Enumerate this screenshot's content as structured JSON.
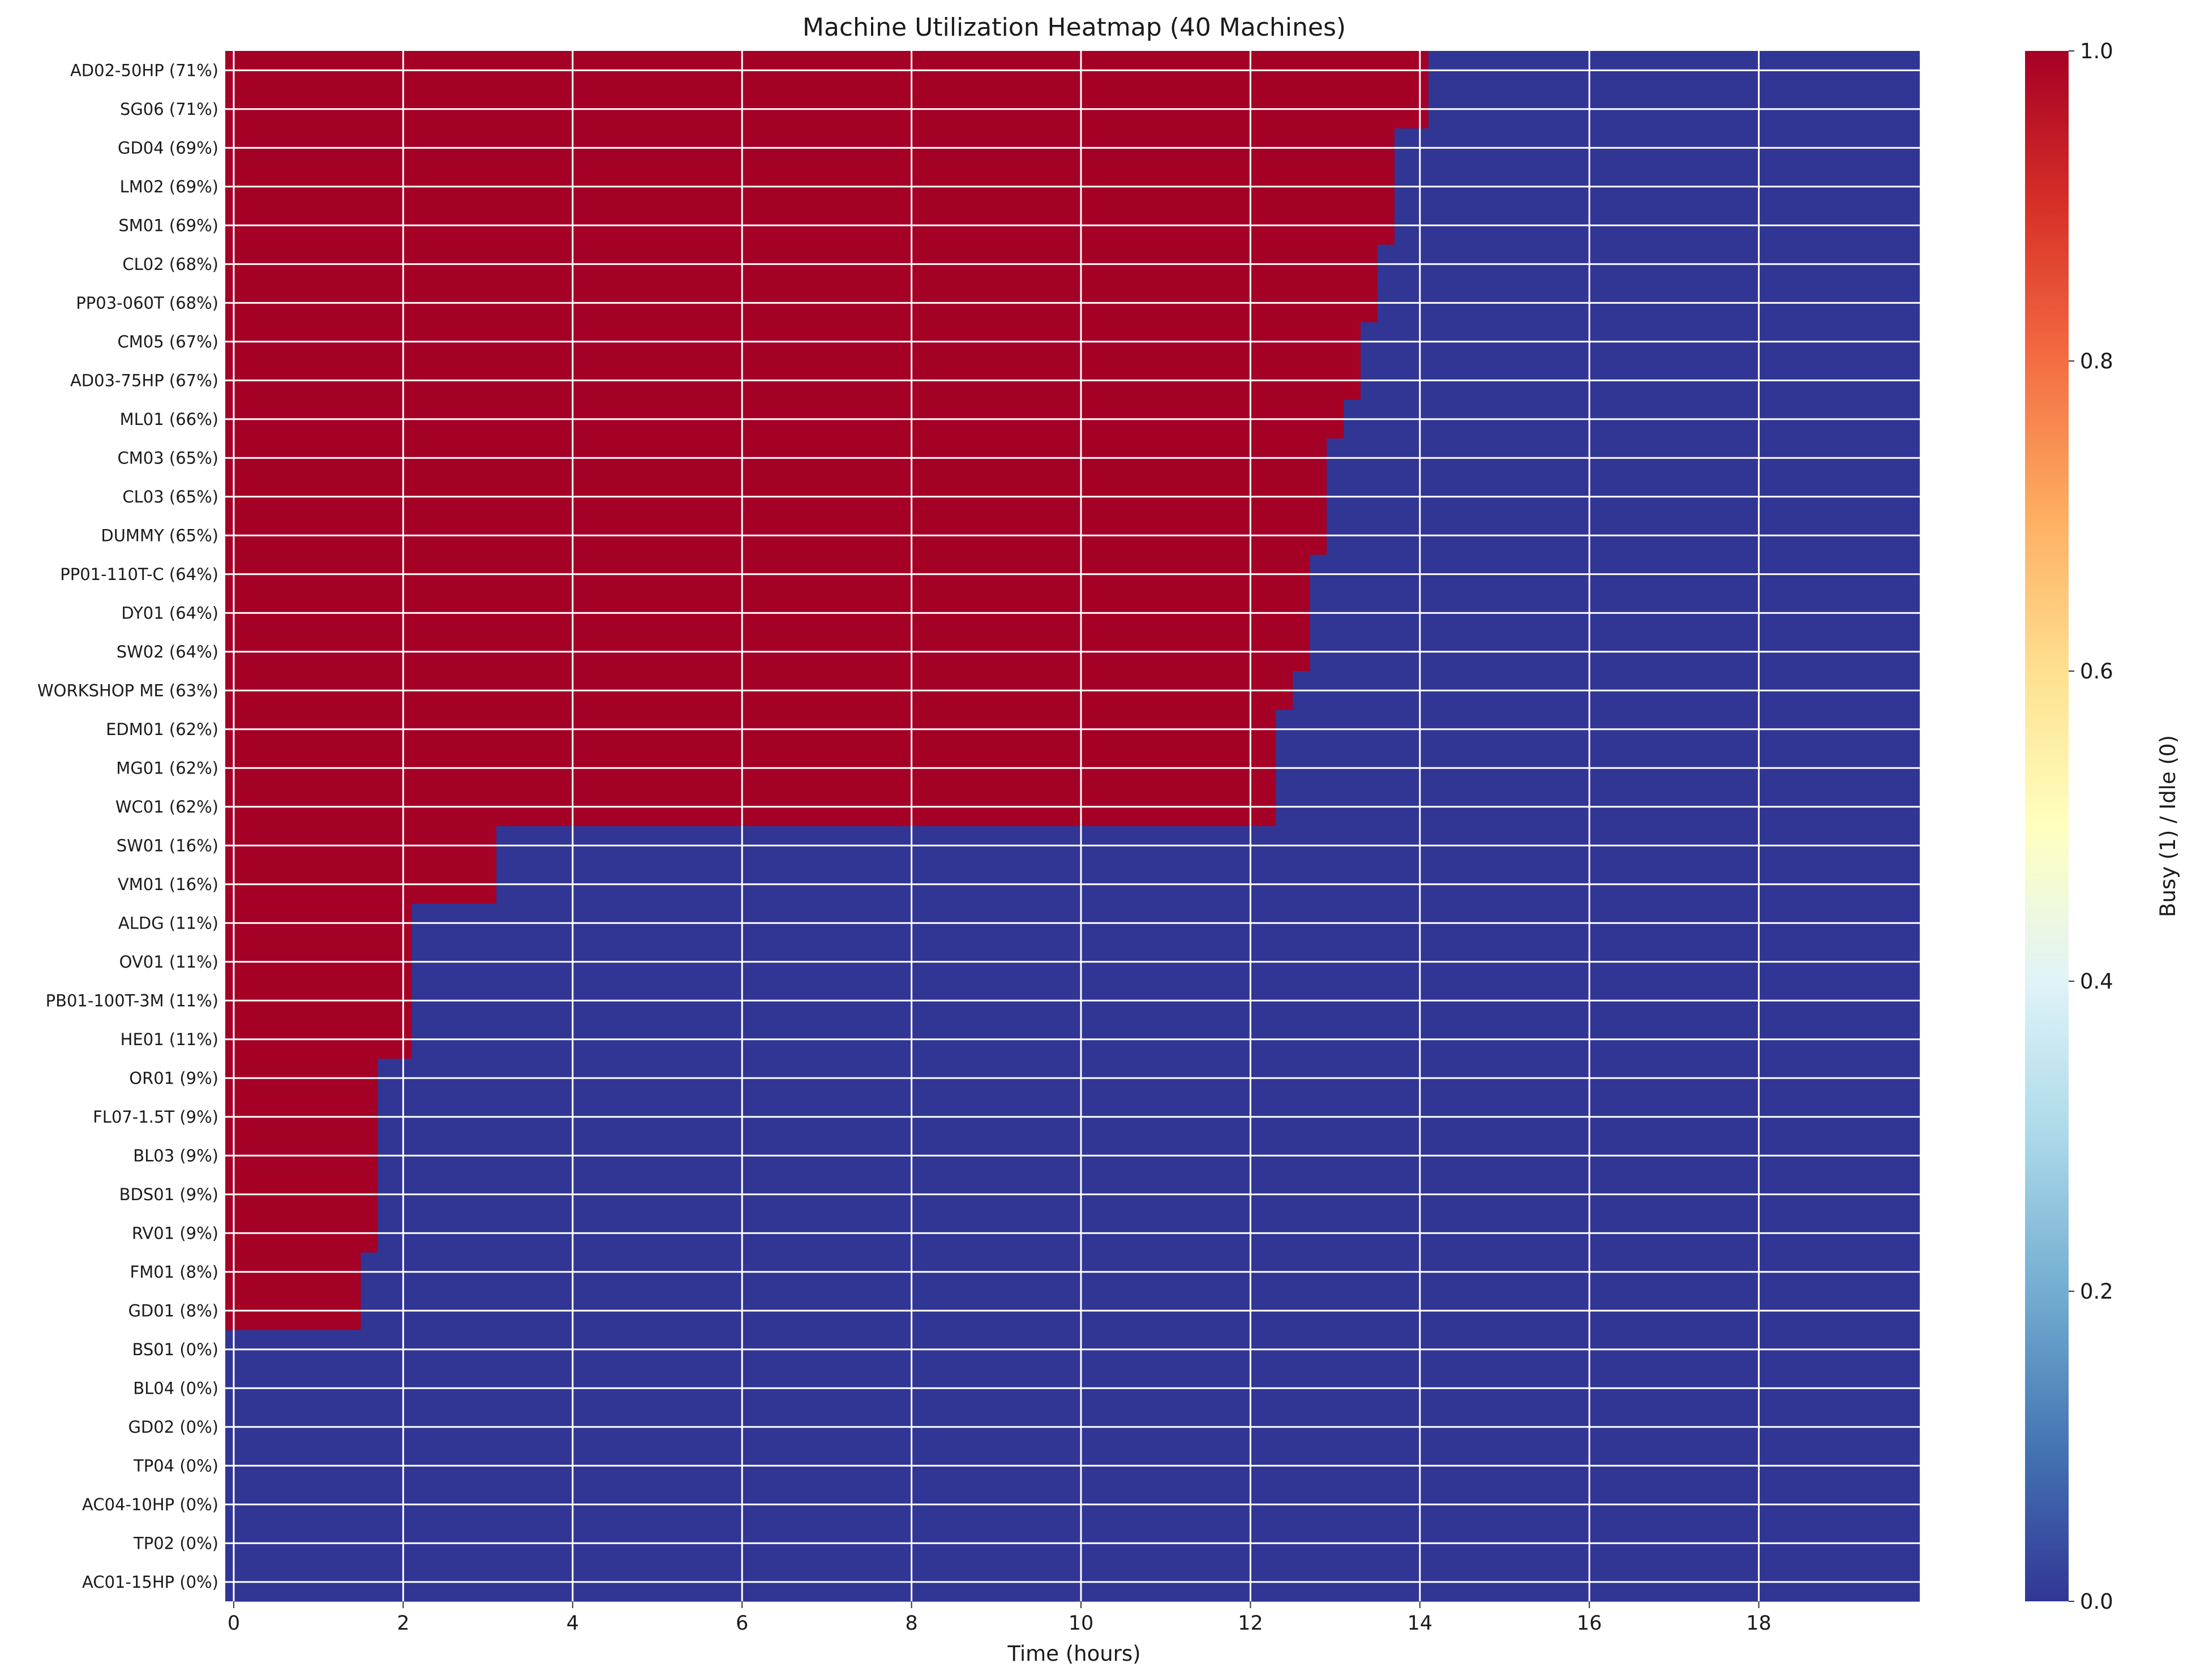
{
  "chart_data": {
    "type": "heatmap",
    "title": "Machine Utilization Heatmap (40 Machines)",
    "xlabel": "Time (hours)",
    "ylabel": "",
    "xlim": [
      -0.1,
      19.9
    ],
    "xticks": [
      "0",
      "2",
      "4",
      "6",
      "8",
      "10",
      "12",
      "14",
      "16",
      "18"
    ],
    "colorbar": {
      "label": "Busy (1) / Idle (0)",
      "range": [
        0,
        1
      ],
      "ticks": [
        "0.0",
        "0.2",
        "0.4",
        "0.6",
        "0.8",
        "1.0"
      ],
      "colormap": "RdYlBu_r"
    },
    "value_encoding": "each machine is busy (1) from time 0 until busy_until hours, idle (0) afterwards",
    "grid": true,
    "colors": {
      "busy": "#a50026",
      "idle": "#313695"
    },
    "rows": [
      {
        "label": "AD02-50HP (71%)",
        "busy_until": 14.1
      },
      {
        "label": "SG06 (71%)",
        "busy_until": 14.1
      },
      {
        "label": "GD04 (69%)",
        "busy_until": 13.7
      },
      {
        "label": "LM02 (69%)",
        "busy_until": 13.7
      },
      {
        "label": "SM01 (69%)",
        "busy_until": 13.7
      },
      {
        "label": "CL02 (68%)",
        "busy_until": 13.5
      },
      {
        "label": "PP03-060T (68%)",
        "busy_until": 13.5
      },
      {
        "label": "CM05 (67%)",
        "busy_until": 13.3
      },
      {
        "label": "AD03-75HP (67%)",
        "busy_until": 13.3
      },
      {
        "label": "ML01 (66%)",
        "busy_until": 13.1
      },
      {
        "label": "CM03 (65%)",
        "busy_until": 12.9
      },
      {
        "label": "CL03 (65%)",
        "busy_until": 12.9
      },
      {
        "label": "DUMMY (65%)",
        "busy_until": 12.9
      },
      {
        "label": "PP01-110T-C (64%)",
        "busy_until": 12.7
      },
      {
        "label": "DY01 (64%)",
        "busy_until": 12.7
      },
      {
        "label": "SW02 (64%)",
        "busy_until": 12.7
      },
      {
        "label": "WORKSHOP ME (63%)",
        "busy_until": 12.5
      },
      {
        "label": "EDM01 (62%)",
        "busy_until": 12.3
      },
      {
        "label": "MG01 (62%)",
        "busy_until": 12.3
      },
      {
        "label": "WC01 (62%)",
        "busy_until": 12.3
      },
      {
        "label": "SW01 (16%)",
        "busy_until": 3.1
      },
      {
        "label": "VM01 (16%)",
        "busy_until": 3.1
      },
      {
        "label": "ALDG (11%)",
        "busy_until": 2.1
      },
      {
        "label": "OV01 (11%)",
        "busy_until": 2.1
      },
      {
        "label": "PB01-100T-3M (11%)",
        "busy_until": 2.1
      },
      {
        "label": "HE01 (11%)",
        "busy_until": 2.1
      },
      {
        "label": "OR01 (9%)",
        "busy_until": 1.7
      },
      {
        "label": "FL07-1.5T (9%)",
        "busy_until": 1.7
      },
      {
        "label": "BL03 (9%)",
        "busy_until": 1.7
      },
      {
        "label": "BDS01 (9%)",
        "busy_until": 1.7
      },
      {
        "label": "RV01 (9%)",
        "busy_until": 1.7
      },
      {
        "label": "FM01 (8%)",
        "busy_until": 1.5
      },
      {
        "label": "GD01 (8%)",
        "busy_until": 1.5
      },
      {
        "label": "BS01 (0%)",
        "busy_until": 0
      },
      {
        "label": "BL04 (0%)",
        "busy_until": 0
      },
      {
        "label": "GD02 (0%)",
        "busy_until": 0
      },
      {
        "label": "TP04 (0%)",
        "busy_until": 0
      },
      {
        "label": "AC04-10HP (0%)",
        "busy_until": 0
      },
      {
        "label": "TP02 (0%)",
        "busy_until": 0
      },
      {
        "label": "AC01-15HP (0%)",
        "busy_until": 0
      }
    ]
  }
}
